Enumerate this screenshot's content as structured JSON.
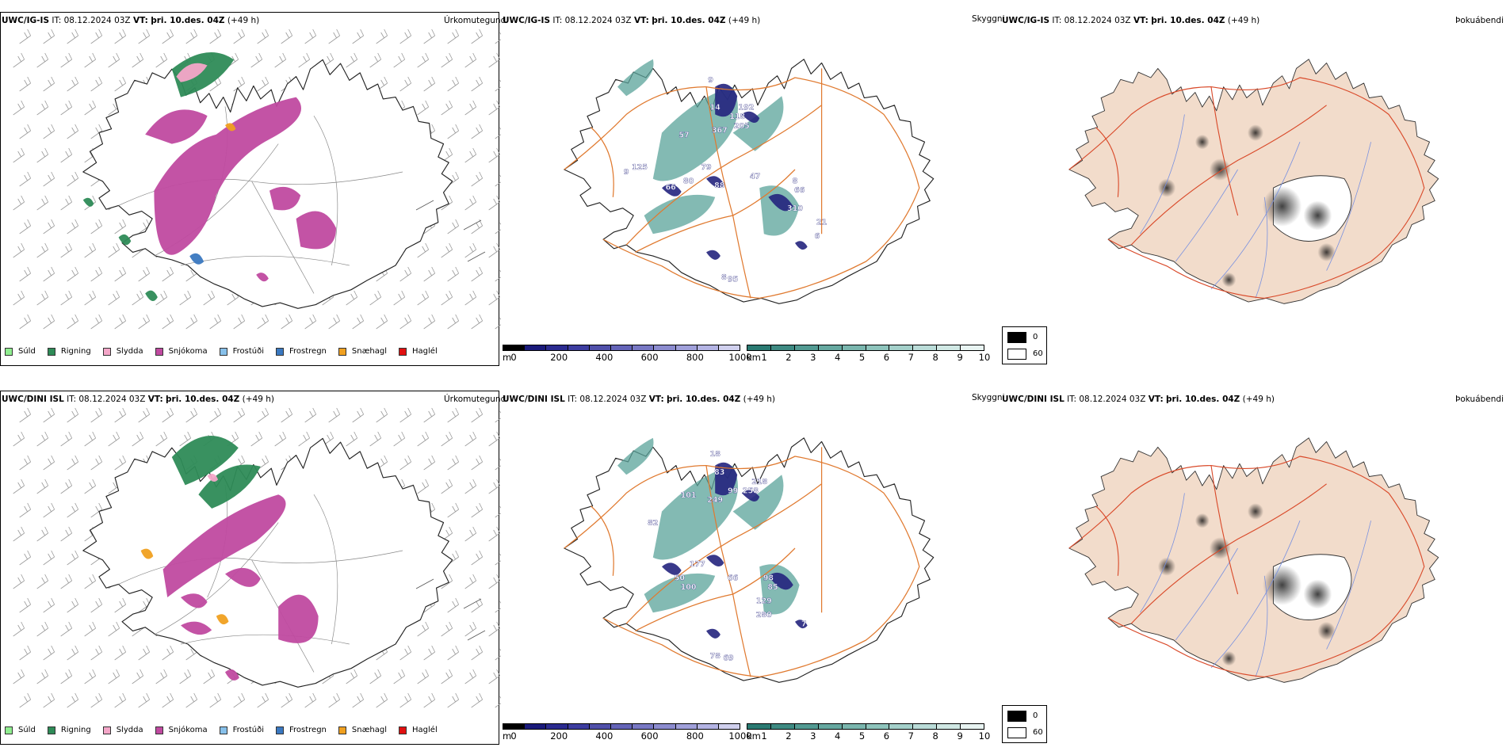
{
  "rows": [
    {
      "model": "UWC/IG-IS",
      "it_label": "IT:",
      "it_value": "08.12.2024 03Z",
      "vt_label": "VT:",
      "vt_value": "þri. 10.des. 04Z",
      "lead": "(+49 h)",
      "precip_title": "Úrkomutegund",
      "cloud_title": "Skyggni",
      "fog_title": "Þokuábendi"
    },
    {
      "model": "UWC/DINI ISL",
      "it_label": "IT:",
      "it_value": "08.12.2024 03Z",
      "vt_label": "VT:",
      "vt_value": "þri. 10.des. 04Z",
      "lead": "(+49 h)",
      "precip_title": "Úrkomutegund",
      "cloud_title": "Skyggni",
      "fog_title": "Þokuábendi"
    }
  ],
  "precip_legend": [
    {
      "label": "Súld",
      "color": "#90ee90"
    },
    {
      "label": "Rigning",
      "color": "#2e8b57"
    },
    {
      "label": "Slydda",
      "color": "#f4a6c8"
    },
    {
      "label": "Snjókoma",
      "color": "#c04aa0"
    },
    {
      "label": "Frostúði",
      "color": "#87c0ea"
    },
    {
      "label": "Frostregn",
      "color": "#3a78c0"
    },
    {
      "label": "Snæhagl",
      "color": "#f0a020"
    },
    {
      "label": "Haglél",
      "color": "#e01010"
    }
  ],
  "ceiling_scale": {
    "unit": "m",
    "ticks": [
      "0",
      "200",
      "400",
      "600",
      "800",
      "1000"
    ],
    "colors": [
      "#000000",
      "#1a1a7a",
      "#2b2b90",
      "#3d3da0",
      "#5050aa",
      "#6464b8",
      "#7878c4",
      "#8c8ccf",
      "#a0a0da",
      "#b4b4e4",
      "#d0d0ee"
    ]
  },
  "visibility_scale": {
    "unit": "km",
    "ticks": [
      "1",
      "2",
      "3",
      "4",
      "5",
      "6",
      "7",
      "8",
      "9",
      "10"
    ],
    "colors": [
      "#2a7a72",
      "#3e8a82",
      "#529a92",
      "#66a8a0",
      "#7ab6ae",
      "#8ec4bc",
      "#a4d0ca",
      "#badcd8",
      "#d0e8e4",
      "#e8f4f2"
    ]
  },
  "fog_key": [
    {
      "label": "0",
      "color": "#000000"
    },
    {
      "label": "60",
      "color": "#ffffff"
    }
  ],
  "ceiling_labels_top": [
    "9",
    "192",
    "118",
    "14",
    "205",
    "367",
    "57",
    "47",
    "125",
    "9",
    "79",
    "80",
    "66",
    "88",
    "8",
    "66",
    "310",
    "21",
    "6",
    "8",
    "95"
  ],
  "ceiling_labels_bottom": [
    "18",
    "218",
    "83",
    "258",
    "99",
    "101",
    "249",
    "82",
    "177",
    "50",
    "100",
    "66",
    "98",
    "85",
    "129",
    "280",
    "78",
    "69",
    "7"
  ],
  "colors": {
    "snow": "#c04aa0",
    "rain": "#2e8b57",
    "sleet": "#f4a6c8",
    "graupel": "#f0a020",
    "frzdrizzle": "#87c0ea",
    "frzrain": "#3a78c0",
    "road": "#e07a30",
    "fogland": "#f2dccb",
    "river": "#7890e0"
  }
}
